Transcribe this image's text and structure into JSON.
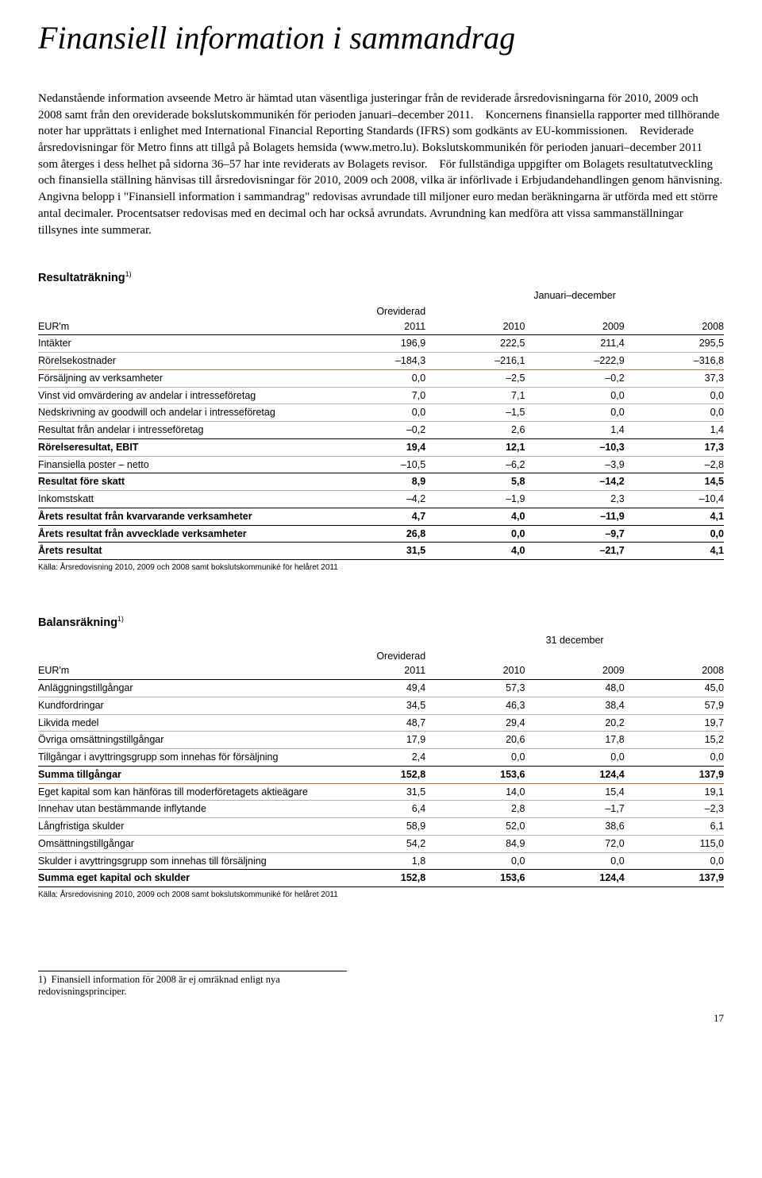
{
  "title": "Finansiell information i sammandrag",
  "body_text": "Nedanstående information avseende Metro är hämtad utan väsentliga justeringar från de reviderade årsredovisningarna för 2010, 2009 och 2008 samt från den oreviderade bokslutskommunikén för perioden januari–december 2011.\n   Koncernens finansiella rapporter med tillhörande noter har upprättats i enlighet med International Financial Reporting Standards (IFRS) som godkänts av EU-kommissionen.\n   Reviderade årsredovisningar för Metro finns att tillgå på Bolagets hemsida (www.metro.lu). Bokslutskommunikén för perioden januari–december 2011 som återges i dess helhet på sidorna 36–57 har inte reviderats av Bolagets revisor.\n   För fullständiga uppgifter om Bolagets resultatutveckling och finansiella ställning hänvisas till årsredovisningar för 2010, 2009 och 2008, vilka är införlivade i Erbjudandehandlingen genom hänvisning. Angivna belopp i \"Finansiell information i sammandrag\" redovisas avrundade till miljoner euro medan beräkningarna är utförda med ett större antal decimaler. Procentsatser redovisas med en decimal och har också avrundats. Avrundning kan medföra att vissa sammanställningar tillsynes inte summerar.",
  "income": {
    "heading": "Resultaträkning",
    "sup": "1)",
    "period_label": "Januari–december",
    "unit_label": "EUR'm",
    "col_sub": "Oreviderad",
    "cols": [
      "2011",
      "2010",
      "2009",
      "2008"
    ],
    "rows": [
      {
        "label": "Intäkter",
        "v": [
          "196,9",
          "222,5",
          "211,4",
          "295,5"
        ],
        "rule": "light"
      },
      {
        "label": "Rörelsekostnader",
        "v": [
          "–184,3",
          "–216,1",
          "–222,9",
          "–316,8"
        ],
        "rule": "accent"
      },
      {
        "label": "Försäljning av verksamheter",
        "v": [
          "0,0",
          "–2,5",
          "–0,2",
          "37,3"
        ],
        "rule": "light"
      },
      {
        "label": "Vinst vid omvärdering av andelar i intresseföretag",
        "v": [
          "7,0",
          "7,1",
          "0,0",
          "0,0"
        ],
        "rule": "light"
      },
      {
        "label": "Nedskrivning av goodwill och andelar i intresseföretag",
        "v": [
          "0,0",
          "–1,5",
          "0,0",
          "0,0"
        ],
        "rule": "light"
      },
      {
        "label": "Resultat från andelar i intresseföretag",
        "v": [
          "–0,2",
          "2,6",
          "1,4",
          "1,4"
        ],
        "rule": "dark"
      },
      {
        "label": "Rörelseresultat, EBIT",
        "v": [
          "19,4",
          "12,1",
          "–10,3",
          "17,3"
        ],
        "rule": "light",
        "bold": true
      },
      {
        "label": "Finansiella poster – netto",
        "v": [
          "–10,5",
          "–6,2",
          "–3,9",
          "–2,8"
        ],
        "rule": "dark"
      },
      {
        "label": "Resultat före skatt",
        "v": [
          "8,9",
          "5,8",
          "–14,2",
          "14,5"
        ],
        "rule": "light",
        "bold": true
      },
      {
        "label": "Inkomstskatt",
        "v": [
          "–4,2",
          "–1,9",
          "2,3",
          "–10,4"
        ],
        "rule": "dark"
      },
      {
        "label": "Årets resultat från kvarvarande verksamheter",
        "v": [
          "4,7",
          "4,0",
          "–11,9",
          "4,1"
        ],
        "rule": "dark",
        "bold": true
      },
      {
        "label": "Årets resultat från avvecklade verksamheter",
        "v": [
          "26,8",
          "0,0",
          "–9,7",
          "0,0"
        ],
        "rule": "dark",
        "bold": true
      },
      {
        "label": "Årets resultat",
        "v": [
          "31,5",
          "4,0",
          "–21,7",
          "4,1"
        ],
        "rule": "dark",
        "bold": true
      }
    ],
    "source": "Källa: Årsredovisning 2010, 2009 och 2008 samt bokslutskommuniké för helåret 2011"
  },
  "balance": {
    "heading": "Balansräkning",
    "sup": "1)",
    "period_label": "31 december",
    "unit_label": "EUR'm",
    "col_sub": "Oreviderad",
    "cols": [
      "2011",
      "2010",
      "2009",
      "2008"
    ],
    "rows": [
      {
        "label": "Anläggningstillgångar",
        "v": [
          "49,4",
          "57,3",
          "48,0",
          "45,0"
        ],
        "rule": "light"
      },
      {
        "label": "Kundfordringar",
        "v": [
          "34,5",
          "46,3",
          "38,4",
          "57,9"
        ],
        "rule": "light"
      },
      {
        "label": "Likvida medel",
        "v": [
          "48,7",
          "29,4",
          "20,2",
          "19,7"
        ],
        "rule": "light"
      },
      {
        "label": "Övriga omsättningstillgångar",
        "v": [
          "17,9",
          "20,6",
          "17,8",
          "15,2"
        ],
        "rule": "light"
      },
      {
        "label": "Tillgångar i avyttringsgrupp som innehas för försäljning",
        "v": [
          "2,4",
          "0,0",
          "0,0",
          "0,0"
        ],
        "rule": "dark"
      },
      {
        "label": "Summa tillgångar",
        "v": [
          "152,8",
          "153,6",
          "124,4",
          "137,9"
        ],
        "rule": "accent",
        "bold": true
      },
      {
        "label": "Eget kapital som kan hänföras till moderföretagets aktieägare",
        "v": [
          "31,5",
          "14,0",
          "15,4",
          "19,1"
        ],
        "rule": "light"
      },
      {
        "label": "Innehav utan bestämmande inflytande",
        "v": [
          "6,4",
          "2,8",
          "–1,7",
          "–2,3"
        ],
        "rule": "light"
      },
      {
        "label": "Långfristiga skulder",
        "v": [
          "58,9",
          "52,0",
          "38,6",
          "6,1"
        ],
        "rule": "light"
      },
      {
        "label": "Omsättningstillgångar",
        "v": [
          "54,2",
          "84,9",
          "72,0",
          "115,0"
        ],
        "rule": "light"
      },
      {
        "label": "Skulder i avyttringsgrupp som innehas till försäljning",
        "v": [
          "1,8",
          "0,0",
          "0,0",
          "0,0"
        ],
        "rule": "dark"
      },
      {
        "label": "Summa eget kapital och skulder",
        "v": [
          "152,8",
          "153,6",
          "124,4",
          "137,9"
        ],
        "rule": "dark",
        "bold": true
      }
    ],
    "source": "Källa: Årsredovisning 2010, 2009 och 2008 samt bokslutskommuniké för helåret 2011"
  },
  "footnote": "1)  Finansiell information för 2008 är ej omräknad enligt nya redovisningsprinciper.",
  "page_number": "17"
}
